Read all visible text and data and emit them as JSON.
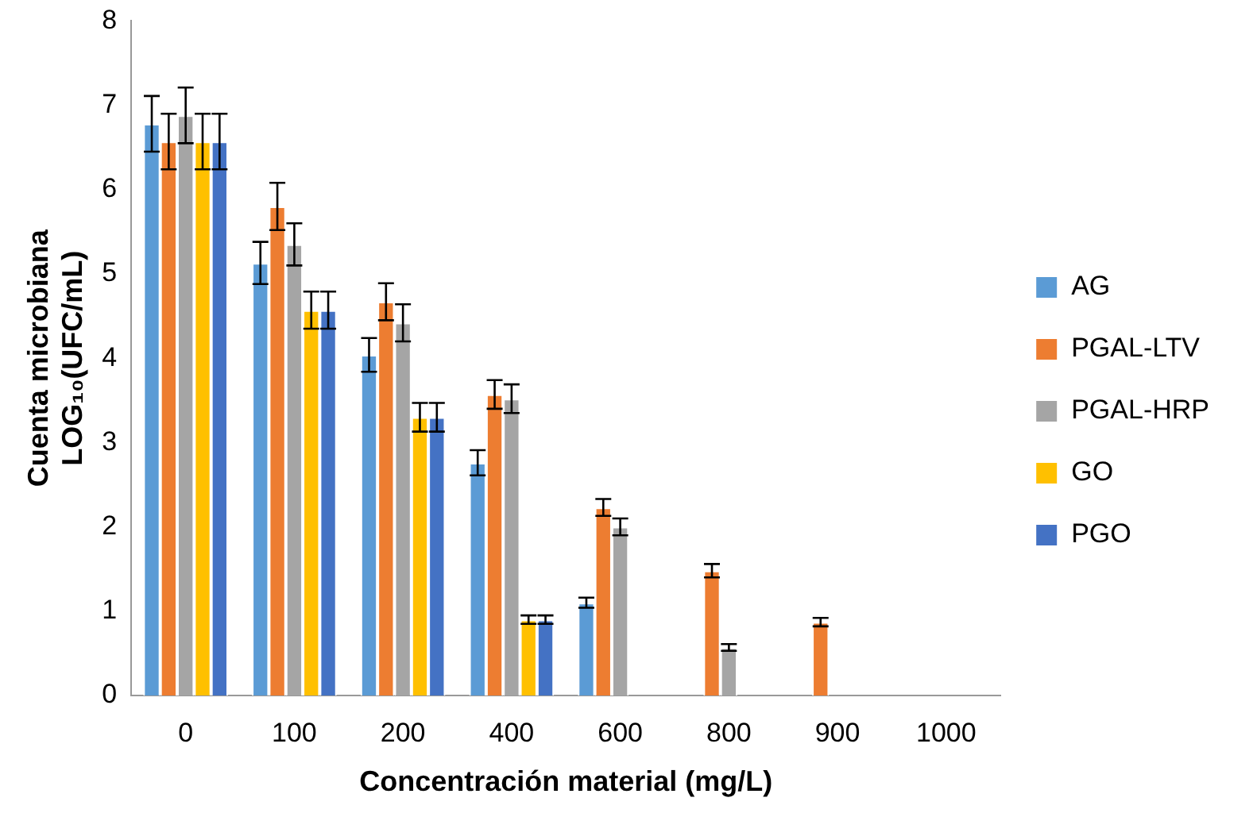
{
  "chart_data": {
    "type": "bar",
    "xlabel": "Concentración material (mg/L)",
    "ylabel": "Cuenta microbiana\nLOG₁₀(UFC/mL)",
    "categories": [
      "0",
      "100",
      "200",
      "400",
      "600",
      "800",
      "900",
      "1000"
    ],
    "series": [
      {
        "name": "AG",
        "color": "#5b9bd5",
        "values": [
          6.78,
          5.13,
          4.04,
          2.76,
          1.1,
          0,
          0,
          0
        ],
        "errors": [
          0.33,
          0.25,
          0.2,
          0.15,
          0.06,
          null,
          null,
          null
        ]
      },
      {
        "name": "PGAL-LTV",
        "color": "#ed7d31",
        "values": [
          6.57,
          5.8,
          4.67,
          3.57,
          2.23,
          1.48,
          0.87,
          0
        ],
        "errors": [
          0.33,
          0.28,
          0.22,
          0.17,
          0.1,
          0.08,
          0.05,
          null
        ]
      },
      {
        "name": "PGAL-HRP",
        "color": "#a5a5a5",
        "values": [
          6.88,
          5.35,
          4.42,
          3.52,
          2.0,
          0.57,
          0,
          0
        ],
        "errors": [
          0.33,
          0.25,
          0.22,
          0.17,
          0.1,
          0.04,
          null,
          null
        ]
      },
      {
        "name": "GO",
        "color": "#ffc000",
        "values": [
          6.57,
          4.57,
          3.3,
          0.9,
          0,
          0,
          0,
          0
        ],
        "errors": [
          0.33,
          0.22,
          0.17,
          0.05,
          null,
          null,
          null,
          null
        ]
      },
      {
        "name": "PGO",
        "color": "#4472c4",
        "values": [
          6.57,
          4.57,
          3.3,
          0.9,
          0,
          0,
          0,
          0
        ],
        "errors": [
          0.33,
          0.22,
          0.17,
          0.05,
          null,
          null,
          null,
          null
        ]
      }
    ],
    "ylim": [
      0,
      8
    ],
    "yticks": [
      0,
      1,
      2,
      3,
      4,
      5,
      6,
      7,
      8
    ],
    "grid": false,
    "legend": "right"
  }
}
